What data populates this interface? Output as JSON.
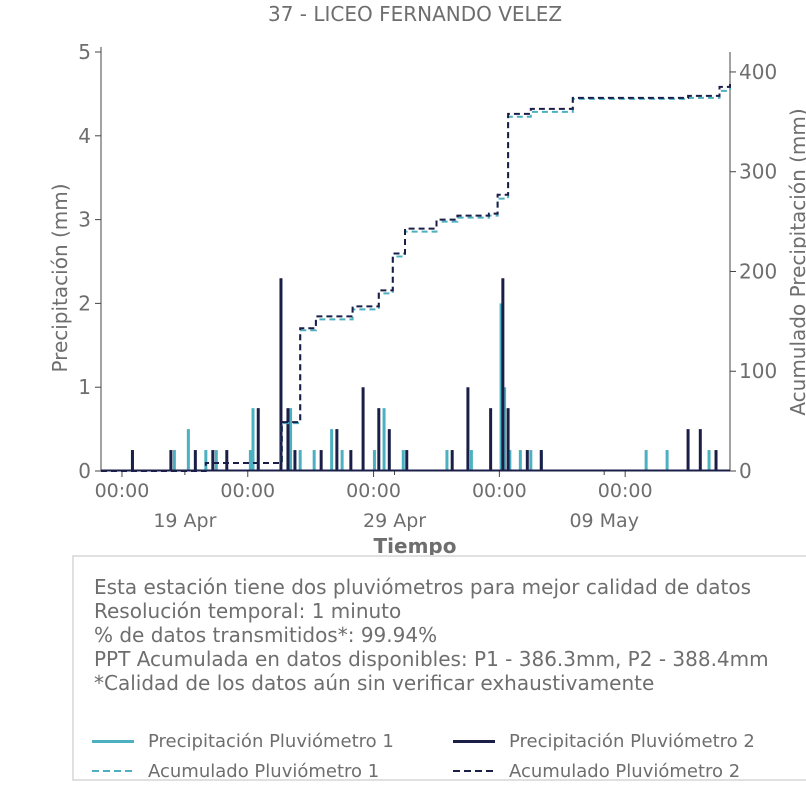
{
  "chart_data": {
    "type": "line",
    "title": "37 - LICEO FERNANDO VELEZ",
    "xlabel": "Tiempo",
    "ylabel_left": "Precipitación (mm)",
    "ylabel_right": "Acumulado Precipitación (mm)",
    "x_range": [
      "2023-04-15",
      "2023-05-15"
    ],
    "ylim_left": [
      0,
      5
    ],
    "ylim_right": [
      0,
      420
    ],
    "yticks_left": [
      "0",
      "1",
      "2",
      "3",
      "4",
      "5"
    ],
    "yticks_right": [
      "0",
      "100",
      "200",
      "300",
      "400"
    ],
    "xticks_major": [
      {
        "date": "2023-04-16",
        "label": "00:00"
      },
      {
        "date": "2023-04-22",
        "label": "00:00"
      },
      {
        "date": "2023-04-28",
        "label": "00:00"
      },
      {
        "date": "2023-05-04",
        "label": "00:00"
      },
      {
        "date": "2023-05-10",
        "label": "00:00"
      }
    ],
    "xticks_minor": [
      {
        "date": "2023-04-19",
        "label": "19 Apr"
      },
      {
        "date": "2023-04-29",
        "label": "29 Apr"
      },
      {
        "date": "2023-05-09",
        "label": "09 May"
      }
    ],
    "series": [
      {
        "name": "Precipitación Pluviómetro 1",
        "color": "#4cb0c1",
        "style": "solid",
        "axis": "left",
        "x": [
          "2023-04-16T12:00",
          "2023-04-18T12:00",
          "2023-04-19T04:00",
          "2023-04-20T00:00",
          "2023-04-20T12:00",
          "2023-04-22T03:00",
          "2023-04-22T06:00",
          "2023-04-24T01:00",
          "2023-04-24T12:00",
          "2023-04-25T04:00",
          "2023-04-26T00:00",
          "2023-04-26T12:00",
          "2023-04-28T01:00",
          "2023-04-28T12:00",
          "2023-04-29T10:00",
          "2023-05-01T12:00",
          "2023-05-02T16:00",
          "2023-05-04T02:00",
          "2023-05-04T06:00",
          "2023-05-04T12:00",
          "2023-05-05T00:00",
          "2023-05-05T12:00",
          "2023-05-06T00:00",
          "2023-05-11T00:00",
          "2023-05-12T00:00",
          "2023-05-14T00:00"
        ],
        "y": [
          0.25,
          0.25,
          0.5,
          0.25,
          0.25,
          0.25,
          0.75,
          0.75,
          0.25,
          0.25,
          0.5,
          0.25,
          0.25,
          0.75,
          0.25,
          0.25,
          0.25,
          2.0,
          1.0,
          0.25,
          0.25,
          0.25,
          0.25,
          0.25,
          0.25,
          0.25
        ]
      },
      {
        "name": "Precipitación Pluviómetro 2",
        "color": "#1b1f48",
        "style": "solid",
        "axis": "left",
        "x": [
          "2023-04-16T12:00",
          "2023-04-18T08:00",
          "2023-04-19T12:00",
          "2023-04-20T08:00",
          "2023-04-21T00:00",
          "2023-04-22T12:00",
          "2023-04-23T14:00",
          "2023-04-23T22:00",
          "2023-04-24T06:00",
          "2023-04-25T12:00",
          "2023-04-26T06:00",
          "2023-04-26T22:00",
          "2023-04-27T12:00",
          "2023-04-28T06:00",
          "2023-04-28T18:00",
          "2023-04-29T14:00",
          "2023-05-01T18:00",
          "2023-05-02T12:00",
          "2023-05-03T14:00",
          "2023-05-04T04:00",
          "2023-05-04T10:00",
          "2023-05-05T08:00",
          "2023-05-06T00:00",
          "2023-05-13T00:00",
          "2023-05-13T14:00",
          "2023-05-14T08:00"
        ],
        "y": [
          0.25,
          0.25,
          0.25,
          0.25,
          0.25,
          0.75,
          2.3,
          0.75,
          0.25,
          0.25,
          0.5,
          0.25,
          1.0,
          0.75,
          0.5,
          0.25,
          0.25,
          1.0,
          0.75,
          2.3,
          0.75,
          0.25,
          0.25,
          0.5,
          0.5,
          0.25
        ]
      },
      {
        "name": "Acumulado Pluviómetro 1",
        "color": "#4cb0c1",
        "style": "dashed",
        "axis": "right",
        "x": [
          "2023-04-15",
          "2023-04-19",
          "2023-04-20",
          "2023-04-22",
          "2023-04-23T12:00",
          "2023-04-23T15:00",
          "2023-04-24T12:00",
          "2023-04-25T06:00",
          "2023-04-27T00:00",
          "2023-04-28T06:00",
          "2023-04-28T22:00",
          "2023-04-29T12:00",
          "2023-05-01T00:00",
          "2023-05-02T00:00",
          "2023-05-03T12:00",
          "2023-05-03T22:00",
          "2023-05-04T10:00",
          "2023-05-05T12:00",
          "2023-05-07T12:00",
          "2023-05-10T00:00",
          "2023-05-13T00:00",
          "2023-05-14T12:00",
          "2023-05-15T00:00"
        ],
        "y": [
          0,
          0,
          8,
          8,
          10,
          48,
          141,
          152,
          162,
          178,
          215,
          240,
          250,
          254,
          256,
          273,
          355,
          360,
          373,
          373,
          374,
          381,
          387
        ]
      },
      {
        "name": "Acumulado Pluviómetro 2",
        "color": "#1b1f48",
        "style": "dashed",
        "axis": "right",
        "x": [
          "2023-04-15",
          "2023-04-19",
          "2023-04-20",
          "2023-04-22",
          "2023-04-23T12:00",
          "2023-04-23T15:00",
          "2023-04-24T12:00",
          "2023-04-25T06:00",
          "2023-04-27T00:00",
          "2023-04-28T06:00",
          "2023-04-28T22:00",
          "2023-04-29T12:00",
          "2023-05-01T00:00",
          "2023-05-02T00:00",
          "2023-05-03T12:00",
          "2023-05-03T22:00",
          "2023-05-04T10:00",
          "2023-05-05T12:00",
          "2023-05-07T12:00",
          "2023-05-10T00:00",
          "2023-05-13T00:00",
          "2023-05-14T12:00",
          "2023-05-15T00:00"
        ],
        "y": [
          0,
          0,
          8,
          8,
          10,
          49,
          143,
          155,
          165,
          181,
          218,
          243,
          252,
          256,
          258,
          277,
          358,
          363,
          374,
          374,
          376,
          385,
          389
        ]
      }
    ]
  },
  "info": {
    "lines": [
      "Esta estación tiene dos pluviómetros para mejor calidad de datos",
      "Resolución temporal: 1 minuto",
      "% de datos transmitidos*: 99.94%",
      "PPT Acumulada en datos disponibles: P1 - 386.3mm, P2 - 388.4mm",
      "*Calidad de los datos aún sin verificar exhaustivamente"
    ]
  },
  "legend": [
    {
      "label": "Precipitación Pluviómetro 1",
      "color": "#4cb0c1",
      "style": "solid"
    },
    {
      "label": "Precipitación Pluviómetro 2",
      "color": "#1b1f48",
      "style": "solid"
    },
    {
      "label": "Acumulado Pluviómetro 1",
      "color": "#4cb0c1",
      "style": "dashed"
    },
    {
      "label": "Acumulado Pluviómetro 2",
      "color": "#1b1f48",
      "style": "dashed"
    }
  ]
}
